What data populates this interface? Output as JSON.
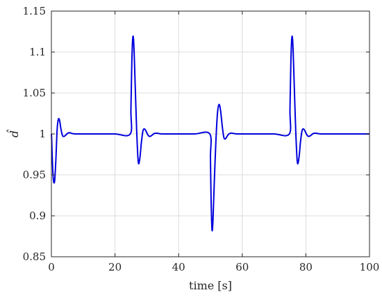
{
  "chart_data": {
    "type": "line",
    "xlabel": "time [s]",
    "ylabel": "d̂",
    "xlim": [
      0,
      100
    ],
    "ylim": [
      0.85,
      1.15
    ],
    "xticks": [
      0,
      20,
      40,
      60,
      80,
      100
    ],
    "yticks": [
      0.85,
      0.9,
      0.95,
      1,
      1.05,
      1.1,
      1.15
    ],
    "xtick_labels": [
      "0",
      "20",
      "40",
      "60",
      "80",
      "100"
    ],
    "ytick_labels": [
      "0.85",
      "0.9",
      "0.95",
      "1",
      "1.05",
      "1.1",
      "1.15"
    ],
    "grid": true,
    "series": [
      {
        "color": "#0000dd",
        "x": [
          0,
          0.1,
          0.3,
          0.6,
          1.0,
          1.4,
          1.8,
          2.2,
          2.6,
          3.0,
          3.5,
          4.0,
          4.6,
          5.2,
          5.8,
          6.5,
          7.5,
          8.5,
          10,
          15,
          20,
          24.8,
          25.0,
          25.3,
          25.6,
          25.9,
          26.3,
          26.8,
          27.3,
          27.8,
          28.3,
          28.8,
          29.3,
          29.8,
          30.3,
          30.8,
          31.5,
          32.3,
          33.2,
          34.2,
          35.5,
          40,
          45,
          49.8,
          50.0,
          50.2,
          50.5,
          50.8,
          51.2,
          51.7,
          52.2,
          52.7,
          53.2,
          53.7,
          54.2,
          54.7,
          55.2,
          55.8,
          56.5,
          57.3,
          58.5,
          60,
          65,
          70,
          74.8,
          75.0,
          75.3,
          75.6,
          75.9,
          76.3,
          76.8,
          77.3,
          77.8,
          78.3,
          78.8,
          79.3,
          79.8,
          80.3,
          80.8,
          81.5,
          82.3,
          83.2,
          84.2,
          85.5,
          90,
          95,
          100
        ],
        "y": [
          1.0,
          0.992,
          0.968,
          0.945,
          0.942,
          0.968,
          1.005,
          1.018,
          1.016,
          1.006,
          0.998,
          0.997,
          0.999,
          1.001,
          1.0015,
          1.0005,
          1.0,
          1.0,
          1.0,
          1.0,
          1.0,
          1.0,
          1.03,
          1.09,
          1.118,
          1.11,
          1.065,
          1.005,
          0.966,
          0.97,
          0.99,
          1.004,
          1.006,
          1.003,
          0.999,
          0.997,
          0.998,
          1.0005,
          1.0008,
          1.0002,
          1.0,
          1.0,
          1.0,
          1.0,
          0.97,
          0.92,
          0.883,
          0.895,
          0.94,
          0.99,
          1.025,
          1.036,
          1.028,
          1.01,
          0.996,
          0.994,
          0.997,
          1.0,
          1.001,
          1.0005,
          1.0,
          1.0,
          1.0,
          1.0,
          1.0,
          1.03,
          1.09,
          1.118,
          1.11,
          1.065,
          1.005,
          0.966,
          0.97,
          0.99,
          1.004,
          1.006,
          1.003,
          0.999,
          0.997,
          0.998,
          1.0005,
          1.0008,
          1.0002,
          1.0,
          1.0,
          1.0,
          1.0
        ]
      }
    ]
  }
}
